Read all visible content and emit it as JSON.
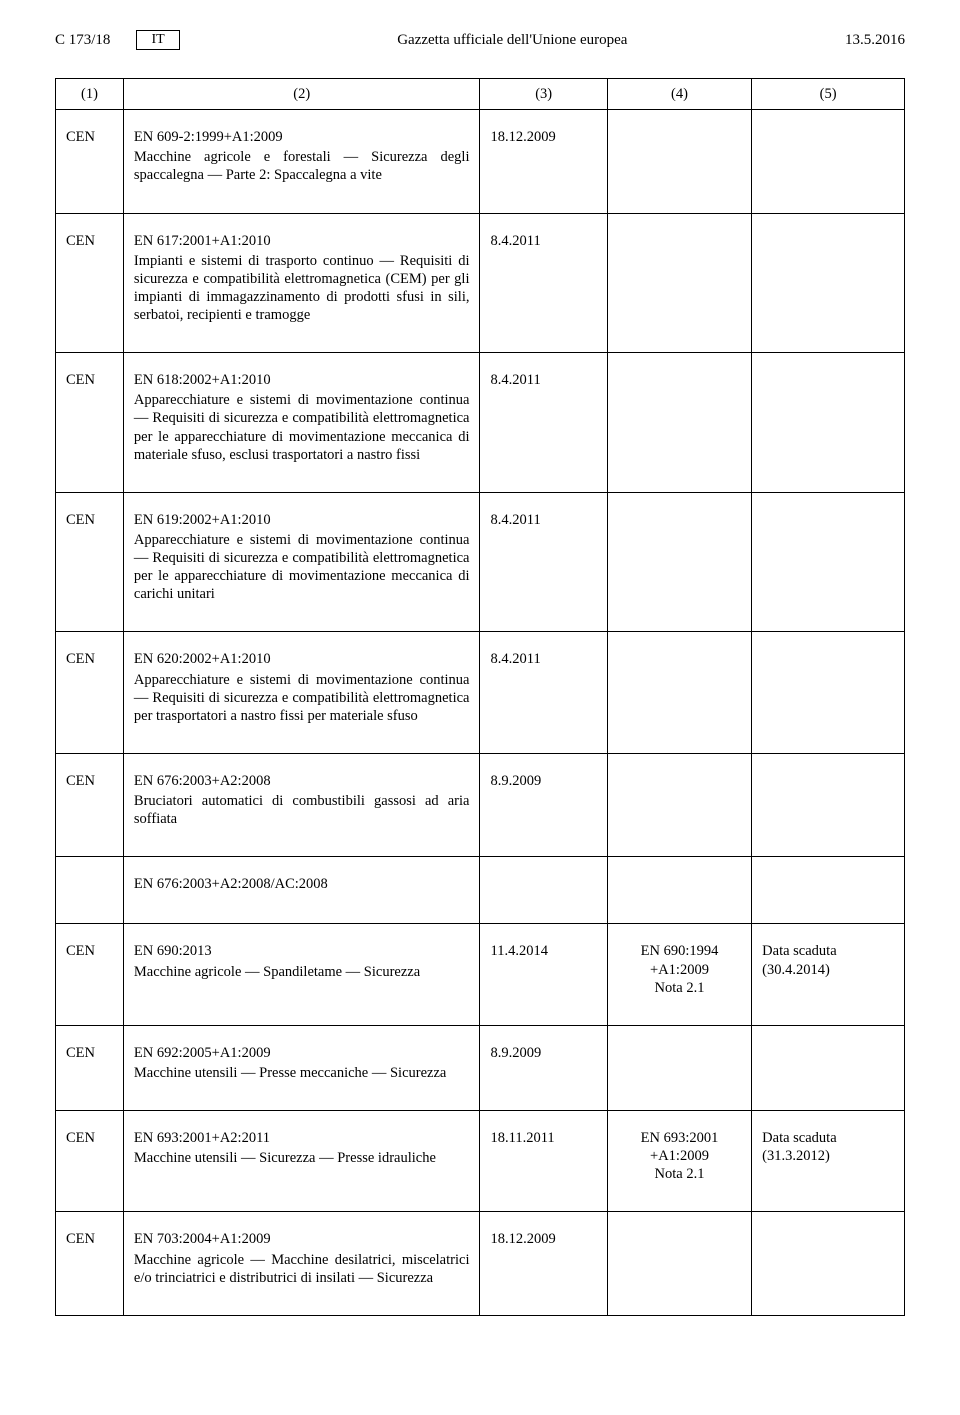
{
  "header": {
    "page_ref": "C 173/18",
    "lang": "IT",
    "title": "Gazzetta ufficiale dell'Unione europea",
    "date": "13.5.2016"
  },
  "table": {
    "headers": [
      "(1)",
      "(2)",
      "(3)",
      "(4)",
      "(5)"
    ],
    "rows": [
      {
        "org": "CEN",
        "code": "EN 609-2:1999+A1:2009",
        "desc": "Macchine agricole e forestali — Sicurezza degli spaccalegna — Parte 2: Spaccalegna a vite",
        "c3": "18.12.2009",
        "c4": "",
        "c5": ""
      },
      {
        "org": "CEN",
        "code": "EN 617:2001+A1:2010",
        "desc": "Impianti e sistemi di trasporto continuo — Requisiti di sicurezza e compatibilità elettroma­gnetica (CEM) per gli impianti di immagazzina­mento di prodotti sfusi in sili, serbatoi, recipienti e tramogge",
        "c3": "8.4.2011",
        "c4": "",
        "c5": ""
      },
      {
        "org": "CEN",
        "code": "EN 618:2002+A1:2010",
        "desc": "Apparecchiature e sistemi di movimentazione continua — Requisiti di sicurezza e compatibilità elettromagnetica per le apparecchiature di movi­mentazione meccanica di materiale sfuso, esclusi trasportatori a nastro fissi",
        "c3": "8.4.2011",
        "c4": "",
        "c5": ""
      },
      {
        "org": "CEN",
        "code": "EN 619:2002+A1:2010",
        "desc": "Apparecchiature e sistemi di movimentazione continua — Requisiti di sicurezza e compatibilità elettromagnetica per le apparecchiature di movi­mentazione meccanica di carichi unitari",
        "c3": "8.4.2011",
        "c4": "",
        "c5": ""
      },
      {
        "org": "CEN",
        "code": "EN 620:2002+A1:2010",
        "desc": "Apparecchiature e sistemi di movimentazione continua — Requisiti di sicurezza e compatibilità elettromagnetica per trasportatori a nastro fissi per materiale sfuso",
        "c3": "8.4.2011",
        "c4": "",
        "c5": ""
      },
      {
        "org": "CEN",
        "code": "EN 676:2003+A2:2008",
        "desc": "Bruciatori automatici di combustibili gassosi ad aria soffiata",
        "c3": "8.9.2009",
        "c4": "",
        "c5": "",
        "sub": {
          "code": "EN 676:2003+A2:2008/AC:2008"
        }
      },
      {
        "org": "CEN",
        "code": "EN 690:2013",
        "desc": "Macchine agricole — Spandiletame — Sicurezza",
        "c3": "11.4.2014",
        "c4": "EN 690:1994\n+A1:2009\nNota 2.1",
        "c5": "Data scaduta\n(30.4.2014)"
      },
      {
        "org": "CEN",
        "code": "EN 692:2005+A1:2009",
        "desc": "Macchine utensili — Presse meccaniche — Sicurezza",
        "c3": "8.9.2009",
        "c4": "",
        "c5": ""
      },
      {
        "org": "CEN",
        "code": "EN 693:2001+A2:2011",
        "desc": "Macchine utensili — Sicurezza — Presse idrauli­che",
        "c3": "18.11.2011",
        "c4": "EN 693:2001\n+A1:2009\nNota 2.1",
        "c5": "Data scaduta\n(31.3.2012)"
      },
      {
        "org": "CEN",
        "code": "EN 703:2004+A1:2009",
        "desc": "Macchine agricole — Macchine desilatrici, mi­scelatrici e/o trinciatrici e distributrici di insilati — Sicurezza",
        "c3": "18.12.2009",
        "c4": "",
        "c5": ""
      }
    ]
  }
}
